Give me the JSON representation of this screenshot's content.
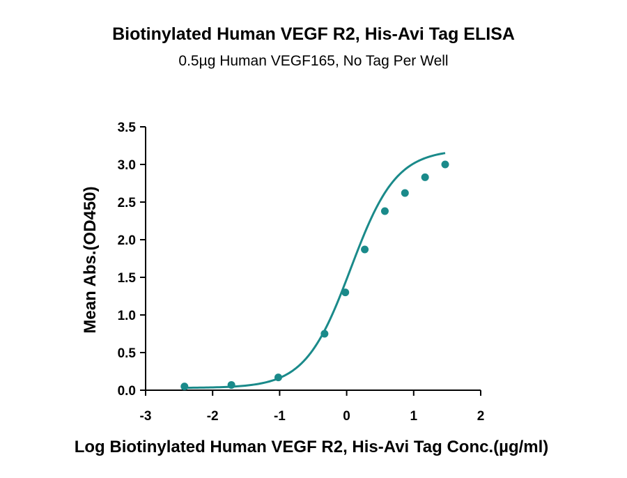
{
  "chart_data": {
    "type": "scatter",
    "title": "Biotinylated Human VEGF R2, His-Avi Tag ELISA",
    "subtitle": "0.5µg Human VEGF165, No Tag Per Well",
    "xlabel": "Log Biotinylated Human VEGF R2, His-Avi Tag Conc.(µg/ml)",
    "ylabel": "Mean Abs.(OD450)",
    "xlim": [
      -3,
      2
    ],
    "ylim": [
      0,
      3.5
    ],
    "xticks": [
      "-3",
      "-2",
      "-1",
      "0",
      "1",
      "2"
    ],
    "yticks": [
      "0.0",
      "0.5",
      "1.0",
      "1.5",
      "2.0",
      "2.5",
      "3.0",
      "3.5"
    ],
    "color": "#1a8a8a",
    "grid": false,
    "legend": "none",
    "series": [
      {
        "x": [
          -2.42,
          -1.72,
          -1.02,
          -0.33,
          -0.02,
          0.27,
          0.57,
          0.87,
          1.17,
          1.47
        ],
        "y": [
          0.05,
          0.07,
          0.17,
          0.75,
          1.3,
          1.87,
          2.38,
          2.62,
          2.83,
          3.0
        ],
        "fit": "sigmoid"
      }
    ]
  }
}
